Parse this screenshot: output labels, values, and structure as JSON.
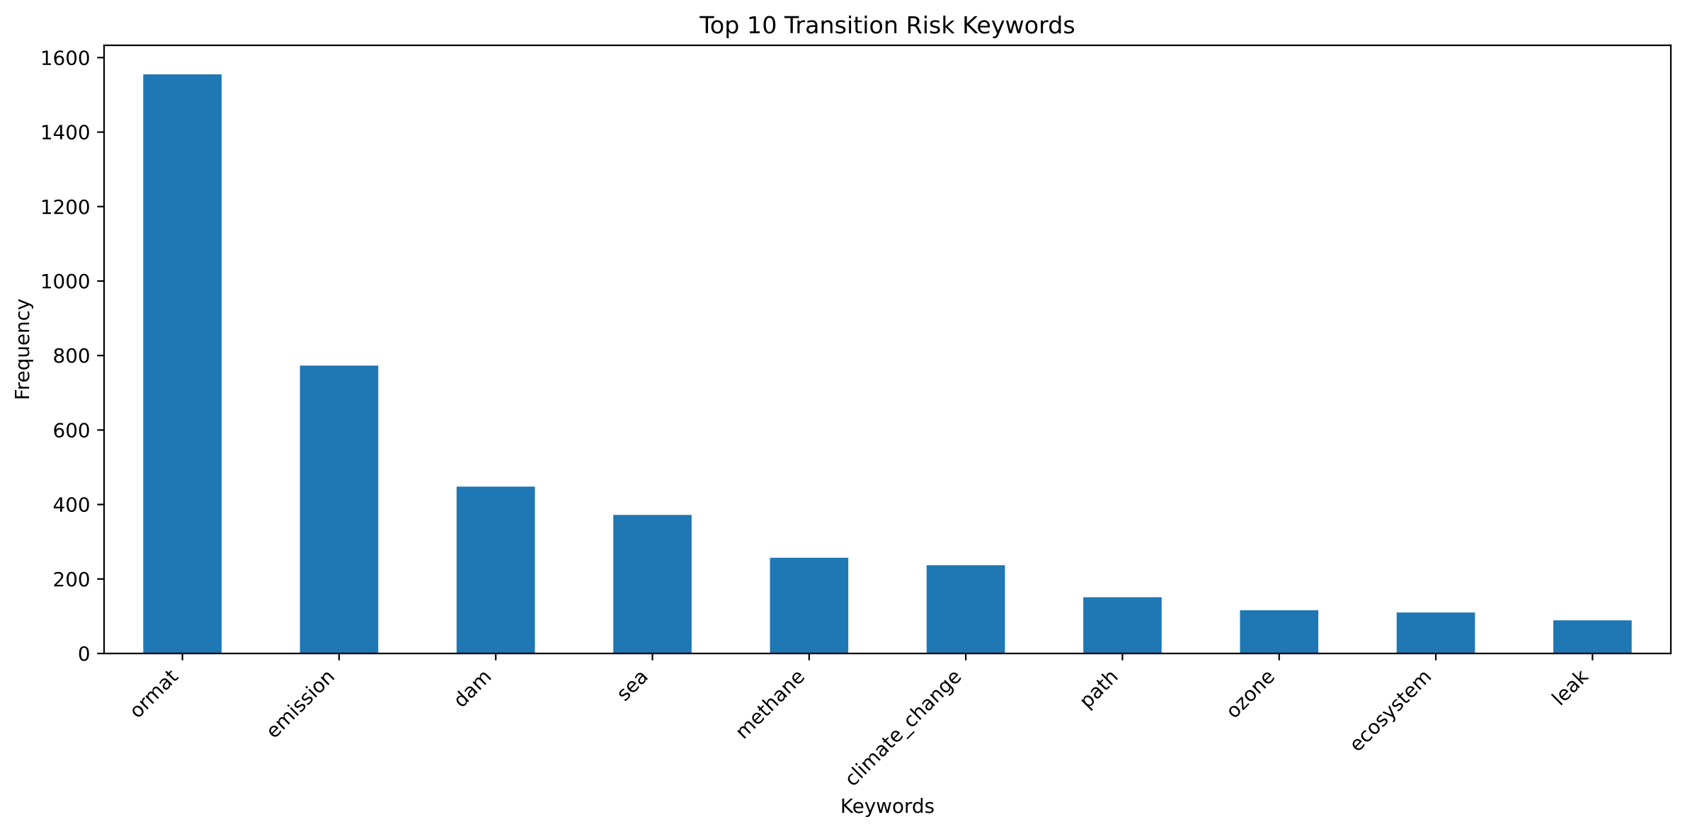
{
  "chart_data": {
    "type": "bar",
    "title": "Top 10 Transition Risk Keywords",
    "xlabel": "Keywords",
    "ylabel": "Frequency",
    "categories": [
      "ormat",
      "emission",
      "dam",
      "sea",
      "methane",
      "climate_change",
      "path",
      "ozone",
      "ecosystem",
      "leak"
    ],
    "values": [
      1555,
      773,
      448,
      372,
      257,
      237,
      151,
      116,
      110,
      89
    ],
    "ylim": [
      0,
      1633
    ],
    "yticks": [
      0,
      200,
      400,
      600,
      800,
      1000,
      1200,
      1400,
      1600
    ],
    "grid": false,
    "bar_color": "#1f77b4"
  }
}
